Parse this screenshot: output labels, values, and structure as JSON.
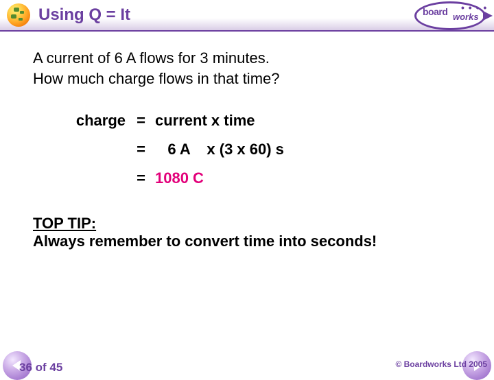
{
  "header": {
    "title": "Using Q = It",
    "logo": {
      "line1": "board",
      "line2": "works",
      "dots": "• • • •"
    }
  },
  "problem": {
    "line1": "A current of 6 A flows for 3 minutes.",
    "line2": "How much charge flows in that time?"
  },
  "equation": {
    "lhs": "charge",
    "formula": "current x time",
    "sub_current": "6 A",
    "sub_mult": "x  (3 x 60) s",
    "answer": "1080 C"
  },
  "tip": {
    "label": "TOP TIP:",
    "text": "Always remember to convert time into seconds!"
  },
  "footer": {
    "page": "36 of 45",
    "copyright": "© Boardworks Ltd 2005"
  },
  "colors": {
    "brand_purple": "#6b3fa0",
    "answer_pink": "#e2007a",
    "bg": "#ffffff"
  }
}
